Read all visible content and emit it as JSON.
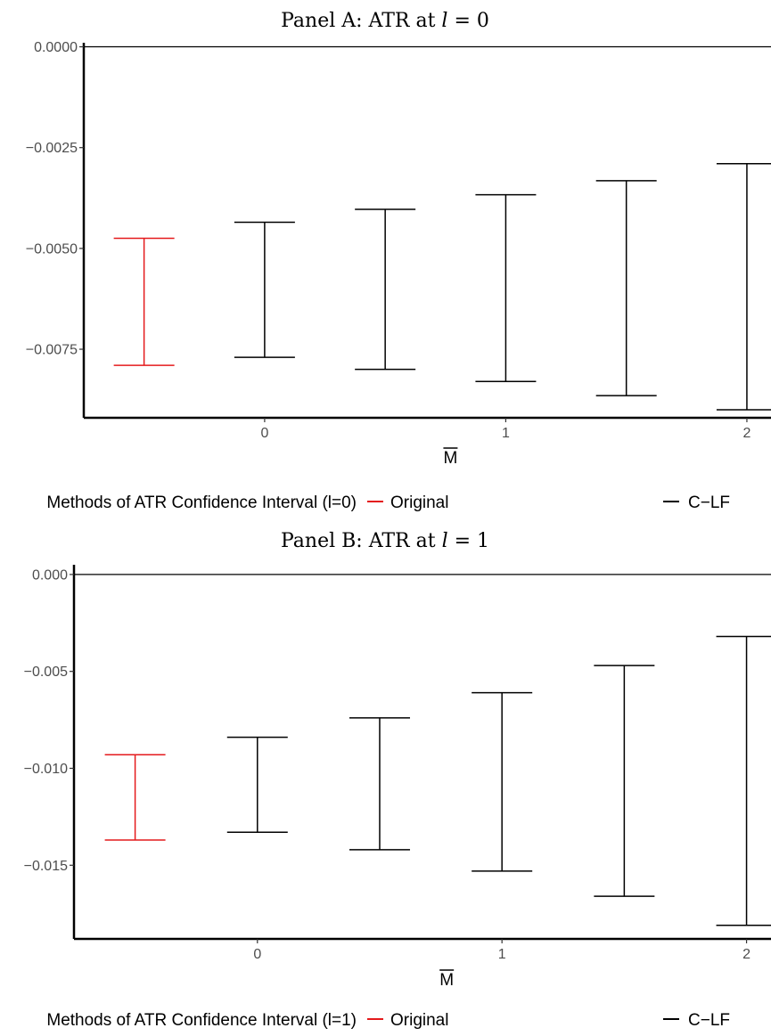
{
  "chart_data": [
    {
      "type": "errorbar",
      "title": "Panel A: ATR at l = 0",
      "title_parts": {
        "prefix": "Panel A: ATR at ",
        "var": "l",
        "suffix": " = 0"
      },
      "xlabel": "M",
      "xlabel_overline": true,
      "x_ticks": [
        0,
        1,
        2
      ],
      "x_tick_labels": [
        "0",
        "1",
        "2"
      ],
      "xlim": [
        -0.75,
        2.1
      ],
      "ylim": [
        -0.0092,
        0.0001
      ],
      "y_ticks": [
        0.0,
        -0.0025,
        -0.005,
        -0.0075
      ],
      "y_tick_labels": [
        "0.0000",
        "−0.0025",
        "−0.0050",
        "−0.0075"
      ],
      "hline": 0.0,
      "grid": false,
      "legend": {
        "position": "bottom",
        "title": "Methods of ATR Confidence Interval (l=0)",
        "entries": [
          {
            "label": "Original",
            "color": "#e41a1c"
          },
          {
            "label": "C−LF",
            "color": "#000000"
          }
        ]
      },
      "series": [
        {
          "name": "Original",
          "color": "#e41a1c",
          "points": [
            {
              "x": -0.5,
              "lower": -0.0079,
              "upper": -0.00475
            }
          ]
        },
        {
          "name": "C−LF",
          "color": "#000000",
          "points": [
            {
              "x": 0.0,
              "lower": -0.0077,
              "upper": -0.00435
            },
            {
              "x": 0.5,
              "lower": -0.008,
              "upper": -0.00403
            },
            {
              "x": 1.0,
              "lower": -0.0083,
              "upper": -0.00367
            },
            {
              "x": 1.5,
              "lower": -0.00865,
              "upper": -0.00332
            },
            {
              "x": 2.0,
              "lower": -0.009,
              "upper": -0.0029
            }
          ]
        }
      ]
    },
    {
      "type": "errorbar",
      "title": "Panel B: ATR at l = 1",
      "title_parts": {
        "prefix": "Panel B: ATR at ",
        "var": "l",
        "suffix": " = 1"
      },
      "xlabel": "M",
      "xlabel_overline": true,
      "x_ticks": [
        0,
        1,
        2
      ],
      "x_tick_labels": [
        "0",
        "1",
        "2"
      ],
      "xlim": [
        -0.75,
        2.1
      ],
      "ylim": [
        -0.0188,
        0.0005
      ],
      "y_ticks": [
        0.0,
        -0.005,
        -0.01,
        -0.015
      ],
      "y_tick_labels": [
        "0.000",
        "−0.005",
        "−0.010",
        "−0.015"
      ],
      "hline": 0.0,
      "grid": false,
      "legend": {
        "position": "bottom",
        "title": "Methods of ATR Confidence Interval (l=1)",
        "entries": [
          {
            "label": "Original",
            "color": "#e41a1c"
          },
          {
            "label": "C−LF",
            "color": "#000000"
          }
        ]
      },
      "series": [
        {
          "name": "Original",
          "color": "#e41a1c",
          "points": [
            {
              "x": -0.5,
              "lower": -0.0137,
              "upper": -0.0093
            }
          ]
        },
        {
          "name": "C−LF",
          "color": "#000000",
          "points": [
            {
              "x": 0.0,
              "lower": -0.0133,
              "upper": -0.0084
            },
            {
              "x": 0.5,
              "lower": -0.0142,
              "upper": -0.0074
            },
            {
              "x": 1.0,
              "lower": -0.0153,
              "upper": -0.0061
            },
            {
              "x": 1.5,
              "lower": -0.0166,
              "upper": -0.0047
            },
            {
              "x": 2.0,
              "lower": -0.0181,
              "upper": -0.0032
            }
          ]
        }
      ]
    }
  ]
}
